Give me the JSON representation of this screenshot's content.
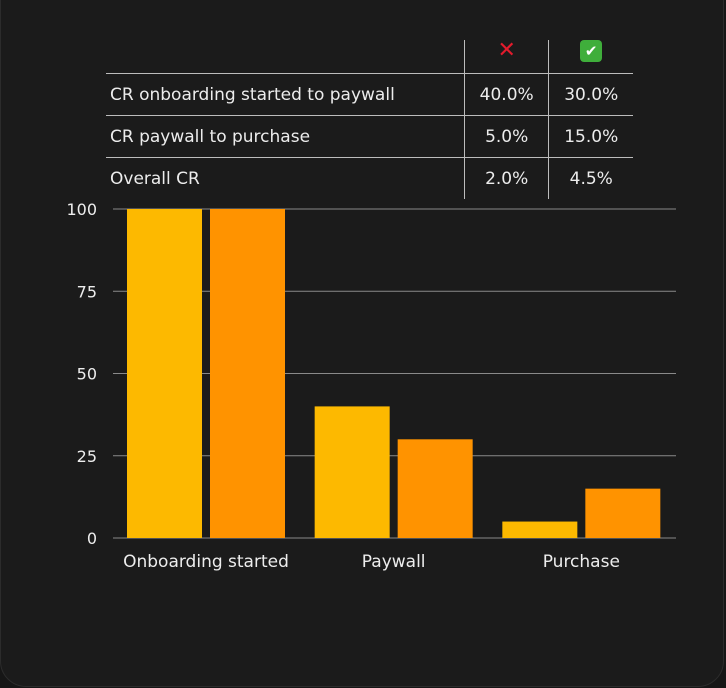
{
  "table": {
    "headers": {
      "col_bad_icon": "red-cross",
      "col_good_icon": "green-check",
      "bad_symbol": "✕",
      "good_symbol": "✔"
    },
    "rows": [
      {
        "label": "CR onboarding started to paywall",
        "bad": "40.0%",
        "good": "30.0%"
      },
      {
        "label": "CR paywall to purchase",
        "bad": "5.0%",
        "good": "15.0%"
      },
      {
        "label": "Overall CR",
        "bad": "2.0%",
        "good": "4.5%"
      }
    ]
  },
  "chart_data": {
    "type": "bar",
    "categories": [
      "Onboarding started",
      "Paywall",
      "Purchase"
    ],
    "series": [
      {
        "values": [
          100,
          40,
          5
        ],
        "color": "#FDB900"
      },
      {
        "values": [
          100,
          30,
          15
        ],
        "color": "#FF9300"
      }
    ],
    "ylim": [
      0,
      100
    ],
    "yticks": [
      0,
      25,
      50,
      75,
      100
    ],
    "grid": true,
    "xlabel": "",
    "ylabel": "",
    "title": ""
  },
  "colors": {
    "background": "#1B1B1B",
    "grid": "#8A8A8A",
    "text": "#EDEDED"
  }
}
